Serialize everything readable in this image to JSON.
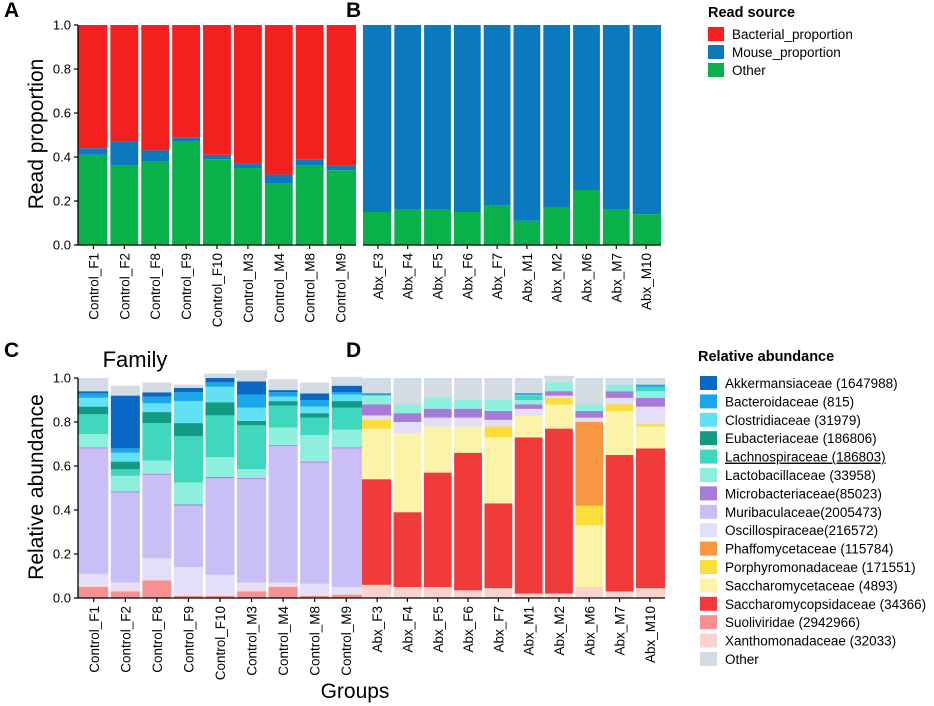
{
  "colors": {
    "Bacterial_proportion": "#f41f1f",
    "Mouse_proportion": "#0a79bd",
    "Other": "#08b14a"
  },
  "panelA": {
    "label": "A",
    "ylabel": "Read proportion",
    "chart_data": {
      "type": "bar",
      "stacked": true,
      "categories": [
        "Control_F1",
        "Control_F2",
        "Control_F8",
        "Control_F9",
        "Control_F10",
        "Control_M3",
        "Control_M4",
        "Control_M8",
        "Control_M9"
      ],
      "series": [
        {
          "name": "Other",
          "values": [
            0.41,
            0.36,
            0.38,
            0.47,
            0.39,
            0.35,
            0.28,
            0.36,
            0.34
          ]
        },
        {
          "name": "Mouse_proportion",
          "values": [
            0.03,
            0.11,
            0.05,
            0.02,
            0.02,
            0.02,
            0.04,
            0.03,
            0.02
          ]
        },
        {
          "name": "Bacterial_proportion",
          "values": [
            0.56,
            0.53,
            0.57,
            0.51,
            0.59,
            0.63,
            0.68,
            0.61,
            0.64
          ]
        }
      ],
      "ylim": [
        0,
        1
      ],
      "yticks": [
        "0.0",
        "0.2",
        "0.4",
        "0.6",
        "0.8",
        "1.0"
      ]
    }
  },
  "panelB": {
    "label": "B",
    "chart_data": {
      "type": "bar",
      "stacked": true,
      "categories": [
        "Abx_F3",
        "Abx_F4",
        "Abx_F5",
        "Abx_F6",
        "Abx_F7",
        "Abx_M1",
        "Abx_M2",
        "Abx_M6",
        "Abx_M7",
        "Abx_M10"
      ],
      "series": [
        {
          "name": "Other",
          "values": [
            0.15,
            0.16,
            0.16,
            0.15,
            0.18,
            0.11,
            0.17,
            0.25,
            0.16,
            0.14
          ]
        },
        {
          "name": "Mouse_proportion",
          "values": [
            0.85,
            0.84,
            0.84,
            0.85,
            0.82,
            0.89,
            0.83,
            0.75,
            0.84,
            0.86
          ]
        },
        {
          "name": "Bacterial_proportion",
          "values": [
            0,
            0,
            0,
            0,
            0,
            0,
            0,
            0,
            0,
            0
          ]
        }
      ],
      "ylim": [
        0,
        1
      ]
    }
  },
  "legend1": {
    "title": "Read source",
    "items": [
      {
        "key": "Bacterial_proportion",
        "label": "Bacterial_proportion"
      },
      {
        "key": "Mouse_proportion",
        "label": "Mouse_proportion"
      },
      {
        "key": "Other",
        "label": "Other"
      }
    ]
  },
  "family_colors": {
    "Akkermansiaceae": "#0868c4",
    "Bacteroidaceae": "#1aa7ea",
    "Clostridiaceae": "#62e1f5",
    "Eubacteriaceae": "#139a82",
    "Lachnospiraceae": "#3fd8be",
    "Lactobacillaceae": "#8fefdf",
    "Microbacteriaceae": "#a87ad9",
    "Muribaculaceae": "#c9bef5",
    "Oscillospiraceae": "#e4dff9",
    "Phaffomycetaceae": "#f99642",
    "Porphyromonadaceae": "#fbdd3c",
    "Saccharomycetaceae": "#fbf3a8",
    "Saccharomycopsidaceae": "#f13b3b",
    "Suoliviridae": "#f79191",
    "Xanthomonadaceae": "#f8d4cc",
    "Other": "#d5dbe2"
  },
  "panelC": {
    "label": "C",
    "title": "Family",
    "ylabel": "Relative abundance",
    "xlabel": "Groups",
    "chart_data": {
      "type": "bar",
      "stacked": true,
      "title": "Family",
      "xlabel": "Groups",
      "ylabel": "Relative abundance",
      "ylim": [
        0,
        1
      ],
      "yticks": [
        "0.0",
        "0.2",
        "0.4",
        "0.6",
        "0.8",
        "1.0"
      ],
      "categories": [
        "Control_F1",
        "Control_F2",
        "Control_F8",
        "Control_F9",
        "Control_F10",
        "Control_M3",
        "Control_M4",
        "Control_M8",
        "Control_M9"
      ],
      "series": [
        {
          "name": "Suoliviridae",
          "values": [
            0.05,
            0.03,
            0.08,
            0.01,
            0.01,
            0.03,
            0.05,
            0.01,
            0.015
          ]
        },
        {
          "name": "Xanthomonadaceae",
          "values": [
            0.005,
            0.005,
            0.005,
            0.005,
            0.005,
            0.005,
            0.005,
            0.005,
            0.005
          ]
        },
        {
          "name": "Oscillospiraceae",
          "values": [
            0.055,
            0.035,
            0.095,
            0.125,
            0.09,
            0.035,
            0.015,
            0.05,
            0.03
          ]
        },
        {
          "name": "Muribaculaceae",
          "values": [
            0.57,
            0.41,
            0.38,
            0.28,
            0.44,
            0.47,
            0.62,
            0.55,
            0.63
          ]
        },
        {
          "name": "Microbacteriaceae",
          "values": [
            0.005,
            0.005,
            0.005,
            0.005,
            0.005,
            0.005,
            0.005,
            0.005,
            0.005
          ]
        },
        {
          "name": "Lactobacillaceae",
          "values": [
            0.06,
            0.07,
            0.06,
            0.1,
            0.09,
            0.04,
            0.08,
            0.12,
            0.08
          ]
        },
        {
          "name": "Lachnospiraceae",
          "values": [
            0.09,
            0.03,
            0.17,
            0.21,
            0.19,
            0.2,
            0.1,
            0.08,
            0.1
          ]
        },
        {
          "name": "Eubacteriaceae",
          "values": [
            0.035,
            0.035,
            0.05,
            0.06,
            0.06,
            0.02,
            0.02,
            0.02,
            0.03
          ]
        },
        {
          "name": "Clostridiaceae",
          "values": [
            0.04,
            0.04,
            0.04,
            0.1,
            0.07,
            0.06,
            0.02,
            0.03,
            0.03
          ]
        },
        {
          "name": "Bacteroidaceae",
          "values": [
            0.02,
            0.02,
            0.03,
            0.04,
            0.02,
            0.06,
            0.02,
            0.03,
            0.01
          ]
        },
        {
          "name": "Akkermansiaceae",
          "values": [
            0.01,
            0.24,
            0.02,
            0.02,
            0.02,
            0.06,
            0.01,
            0.03,
            0.03
          ]
        },
        {
          "name": "Other",
          "values": [
            0.06,
            0.045,
            0.045,
            0.015,
            0.02,
            0.05,
            0.05,
            0.05,
            0.04
          ]
        }
      ]
    }
  },
  "panelD": {
    "label": "D",
    "chart_data": {
      "type": "bar",
      "stacked": true,
      "ylim": [
        0,
        1
      ],
      "categories": [
        "Abx_F3",
        "Abx_F4",
        "Abx_F5",
        "Abx_F6",
        "Abx_F7",
        "Abx_M1",
        "Abx_M2",
        "Abx_M6",
        "Abx_M7",
        "Abx_M10"
      ],
      "series": [
        {
          "name": "Xanthomonadaceae",
          "values": [
            0.06,
            0.05,
            0.05,
            0.035,
            0.045,
            0.02,
            0.02,
            0.05,
            0.03,
            0.045
          ]
        },
        {
          "name": "Saccharomycopsidaceae",
          "values": [
            0.48,
            0.34,
            0.52,
            0.625,
            0.385,
            0.71,
            0.75,
            0.0,
            0.62,
            0.635
          ]
        },
        {
          "name": "Saccharomycetaceae",
          "values": [
            0.23,
            0.36,
            0.21,
            0.12,
            0.3,
            0.1,
            0.11,
            0.28,
            0.2,
            0.1
          ]
        },
        {
          "name": "Porphyromonadaceae",
          "values": [
            0.04,
            0.0,
            0.0,
            0.0,
            0.05,
            0.0,
            0.03,
            0.09,
            0.03,
            0.01
          ]
        },
        {
          "name": "Phaffomycetaceae",
          "values": [
            0,
            0,
            0,
            0,
            0,
            0,
            0,
            0.38,
            0,
            0
          ]
        },
        {
          "name": "Oscillospiraceae",
          "values": [
            0.02,
            0.05,
            0.04,
            0.04,
            0.03,
            0.03,
            0.01,
            0.02,
            0.03,
            0.08
          ]
        },
        {
          "name": "Microbacteriaceae",
          "values": [
            0.05,
            0.04,
            0.04,
            0.04,
            0.04,
            0.02,
            0.02,
            0.03,
            0.03,
            0.04
          ]
        },
        {
          "name": "Lactobacillaceae",
          "values": [
            0.04,
            0.04,
            0.05,
            0.04,
            0.05,
            0.02,
            0.04,
            0.03,
            0.03,
            0.03
          ]
        },
        {
          "name": "Lachnospiraceae",
          "values": [
            0.005,
            0.0,
            0.0,
            0.0,
            0.0,
            0.02,
            0.0,
            0.0,
            0.0,
            0.02
          ]
        },
        {
          "name": "Clostridiaceae",
          "values": [
            0.0,
            0.0,
            0.0,
            0.0,
            0.0,
            0.005,
            0.0,
            0.0,
            0.0,
            0.0
          ]
        },
        {
          "name": "Bacteroidaceae",
          "values": [
            0.0,
            0.0,
            0.0,
            0.0,
            0.0,
            0.0,
            0.0,
            0.0,
            0.0,
            0.01
          ]
        },
        {
          "name": "Akkermansiaceae",
          "values": [
            0.005,
            0.0,
            0.0,
            0.0,
            0.0,
            0.005,
            0.0,
            0.0,
            0.0,
            0.0
          ]
        },
        {
          "name": "Other",
          "values": [
            0.06,
            0.08,
            0.06,
            0.05,
            0.09,
            0.01,
            0.03,
            0.09,
            0.03,
            0.03
          ]
        }
      ]
    }
  },
  "legend2": {
    "title": "Relative abundance",
    "items": [
      {
        "key": "Akkermansiaceae",
        "label": "Akkermansiaceae (1647988)"
      },
      {
        "key": "Bacteroidaceae",
        "label": "Bacteroidaceae (815)"
      },
      {
        "key": "Clostridiaceae",
        "label": "Clostridiaceae (31979)"
      },
      {
        "key": "Eubacteriaceae",
        "label": "Eubacteriaceae (186806)"
      },
      {
        "key": "Lachnospiraceae",
        "label": "Lachnospiraceae (186803)",
        "underline": true
      },
      {
        "key": "Lactobacillaceae",
        "label": "Lactobacillaceae (33958)"
      },
      {
        "key": "Microbacteriaceae",
        "label": "Microbacteriaceae(85023)"
      },
      {
        "key": "Muribaculaceae",
        "label": "Muribaculaceae(2005473)"
      },
      {
        "key": "Oscillospiraceae",
        "label": "Oscillospiraceae(216572)"
      },
      {
        "key": "Phaffomycetaceae",
        "label": "Phaffomycetaceae (115784)"
      },
      {
        "key": "Porphyromonadaceae",
        "label": "Porphyromonadaceae (171551)"
      },
      {
        "key": "Saccharomycetaceae",
        "label": "Saccharomycetaceae (4893)"
      },
      {
        "key": "Saccharomycopsidaceae",
        "label": "Saccharomycopsidaceae (34366)"
      },
      {
        "key": "Suoliviridae",
        "label": "Suoliviridae (2942966)"
      },
      {
        "key": "Xanthomonadaceae",
        "label": "Xanthomonadaceae (32033)"
      },
      {
        "key": "Other",
        "label": "Other"
      }
    ]
  }
}
